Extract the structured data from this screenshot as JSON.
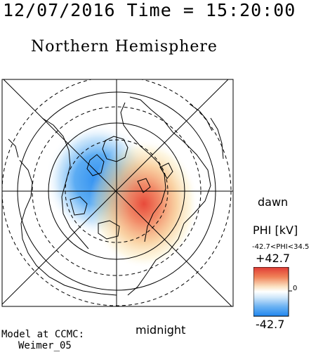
{
  "header": {
    "timestamp": "12/07/2016 Time = 15:20:00",
    "hemisphere": "Northern Hemisphere"
  },
  "map": {
    "directions": {
      "dawn": "dawn",
      "midnight": "midnight"
    },
    "potential_pattern": {
      "negative_cell": "dusk/day side (upper-left)",
      "positive_cell": "dawn/night side (lower-right)"
    }
  },
  "colorbar": {
    "title": "PHI [kV]",
    "range_text": "-42.7<PHI<34.5",
    "max_label": "+42.7",
    "min_label": "-42.7",
    "zero_label": "0",
    "colors": {
      "negative": "#2c8ef0",
      "neutral": "#ffffff",
      "positive": "#e8483a"
    }
  },
  "credits": {
    "line1": "Model at CCMC:",
    "line2": "Weimer_05"
  }
}
